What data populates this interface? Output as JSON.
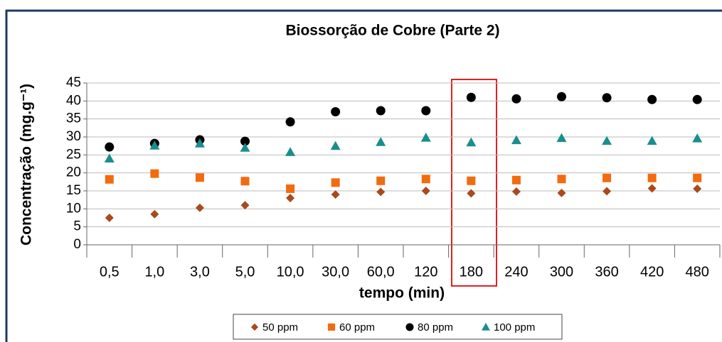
{
  "chart_data": {
    "type": "scatter",
    "title": "Biossorção de Cobre (Parte 2)",
    "xlabel": "tempo (min)",
    "ylabel": "Concentração (mg.g⁻¹)",
    "categories": [
      "0,5",
      "1,0",
      "3,0",
      "5,0",
      "10,0",
      "30,0",
      "60,0",
      "120",
      "180",
      "240",
      "300",
      "360",
      "420",
      "480"
    ],
    "series": [
      {
        "name": "50 ppm",
        "color": "#a84a1c",
        "marker": "diamond",
        "values": [
          7.5,
          8.5,
          10.3,
          11,
          13,
          14,
          14.7,
          15,
          14.3,
          14.8,
          14.4,
          14.9,
          15.7,
          15.6
        ]
      },
      {
        "name": "60 ppm",
        "color": "#f26b0f",
        "marker": "square",
        "values": [
          18.2,
          19.8,
          18.7,
          17.7,
          15.6,
          17.3,
          17.8,
          18.3,
          17.8,
          18.0,
          18.3,
          18.6,
          18.6,
          18.6
        ]
      },
      {
        "name": "80 ppm",
        "color": "#000000",
        "marker": "circle",
        "values": [
          27.2,
          28.2,
          29.2,
          28.8,
          34.2,
          37,
          37.3,
          37.3,
          41,
          40.6,
          41.2,
          40.9,
          40.4,
          40.4
        ]
      },
      {
        "name": "100 ppm",
        "color": "#1a8e8c",
        "marker": "triangle",
        "values": [
          24,
          27.6,
          28.2,
          27,
          25.8,
          27.5,
          28.6,
          29.8,
          28.5,
          29.1,
          29.7,
          28.9,
          28.9,
          29.6
        ]
      }
    ],
    "ylim": [
      0,
      45
    ],
    "yticks": [
      0,
      5,
      10,
      15,
      20,
      25,
      30,
      35,
      40,
      45
    ],
    "grid": true,
    "legend": "bottom"
  }
}
